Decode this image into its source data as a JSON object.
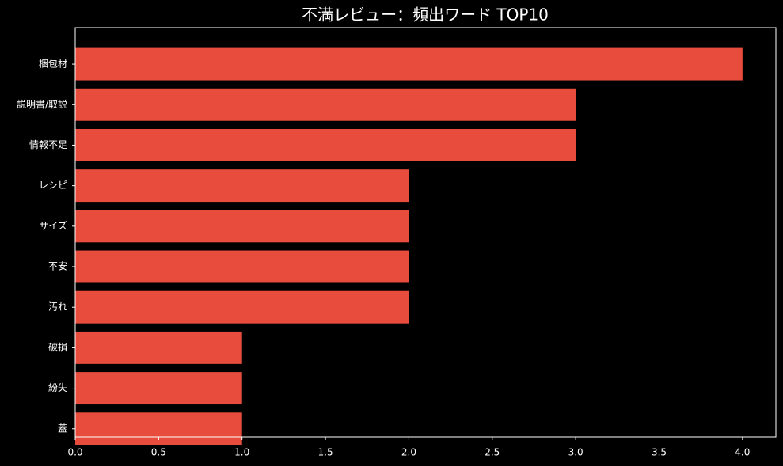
{
  "chart_data": {
    "type": "barh",
    "title": "不満レビュー：頻出ワード TOP10",
    "categories": [
      "梱包材",
      "説明書/取説",
      "情報不足",
      "レシピ",
      "サイズ",
      "不安",
      "汚れ",
      "破損",
      "紛失",
      "蓋"
    ],
    "values": [
      4,
      3,
      3,
      2,
      2,
      2,
      2,
      1,
      1,
      1
    ],
    "color": "#e74c3c",
    "xlim": [
      0,
      4.2
    ],
    "xticks": [
      {
        "value": 0,
        "label": "0.0"
      },
      0.5,
      {
        "value": 1,
        "label": "1.0"
      },
      1.5,
      {
        "value": 2,
        "label": "2.0"
      },
      2.5,
      {
        "value": 3,
        "label": "3.0"
      },
      3.5,
      {
        "value": 4,
        "label": "4.0"
      }
    ],
    "grid": false
  }
}
